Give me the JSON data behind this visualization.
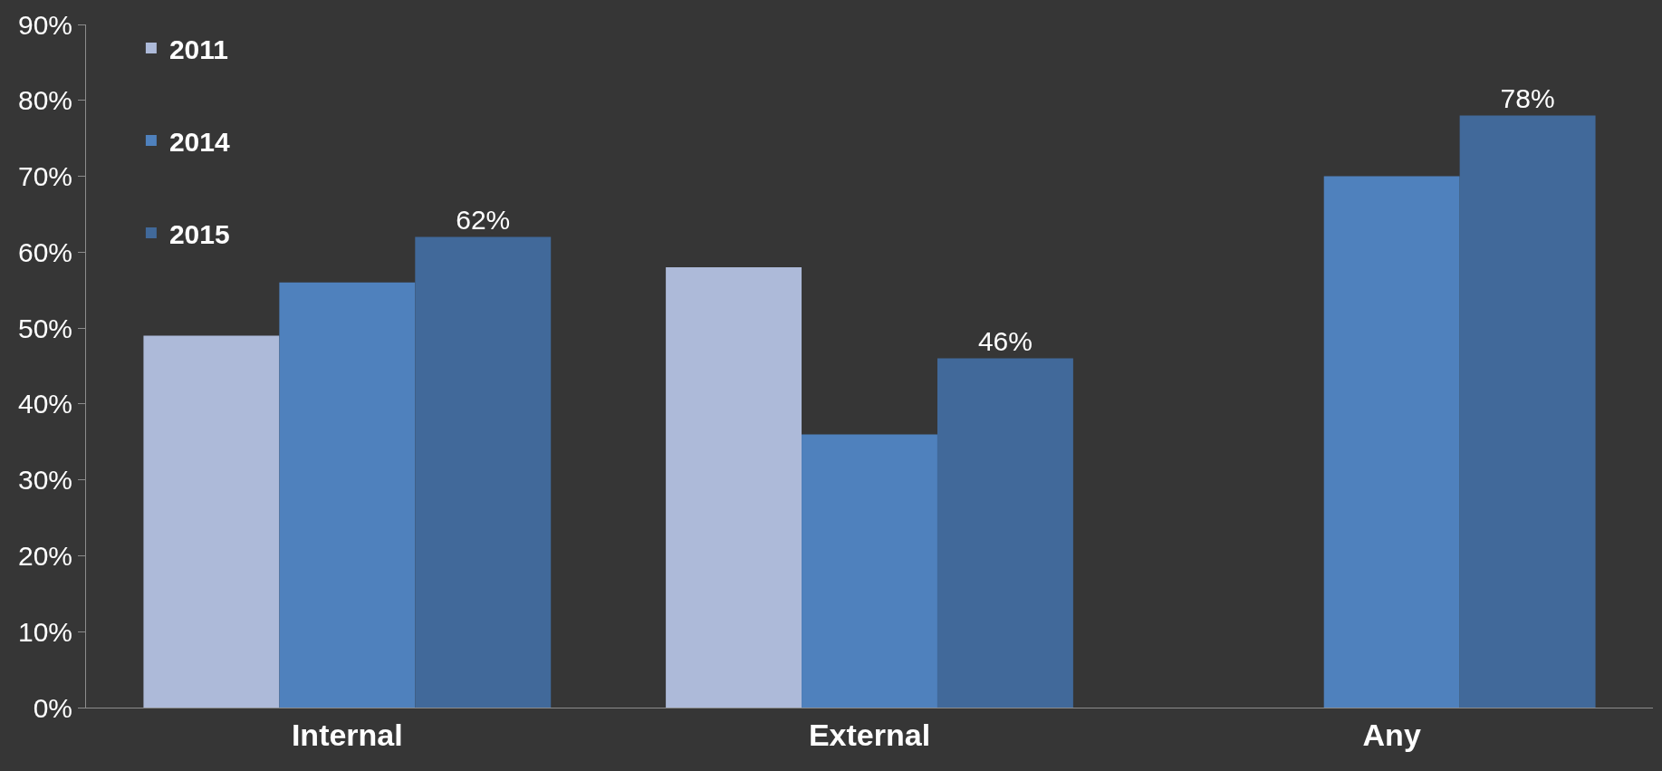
{
  "chart_data": {
    "type": "bar",
    "categories": [
      "Internal",
      "External",
      "Any"
    ],
    "series": [
      {
        "name": "2011",
        "color": "#adbad9",
        "values": [
          49,
          58,
          null
        ]
      },
      {
        "name": "2014",
        "color": "#4f81bd",
        "values": [
          56,
          36,
          70
        ]
      },
      {
        "name": "2015",
        "color": "#41699a",
        "values": [
          62,
          46,
          78
        ],
        "value_labels": [
          "62%",
          "46%",
          "78%"
        ]
      }
    ],
    "ylim": [
      0,
      90
    ],
    "yticks": [
      {
        "value": 0,
        "label": "0%"
      },
      {
        "value": 10,
        "label": "10%"
      },
      {
        "value": 20,
        "label": "20%"
      },
      {
        "value": 30,
        "label": "30%"
      },
      {
        "value": 40,
        "label": "40%"
      },
      {
        "value": 50,
        "label": "50%"
      },
      {
        "value": 60,
        "label": "60%"
      },
      {
        "value": 70,
        "label": "70%"
      },
      {
        "value": 80,
        "label": "80%"
      },
      {
        "value": 90,
        "label": "90%"
      }
    ],
    "grid": false,
    "legend": "top left"
  }
}
